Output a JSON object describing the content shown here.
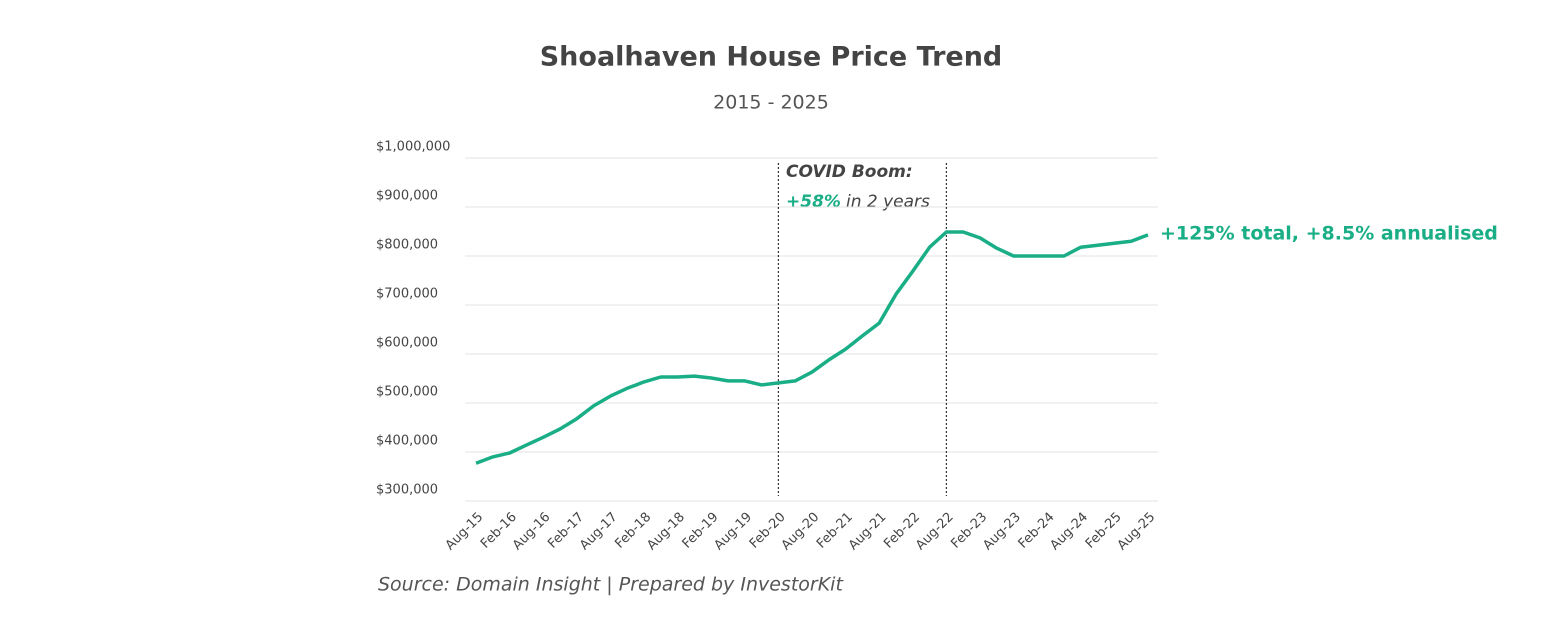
{
  "chart_data": {
    "type": "line",
    "title": "Shoalhaven House Price Trend",
    "subtitle": "2015 - 2025",
    "annotations": [
      "COVID Boom:",
      "+58%",
      "in 2 years",
      "+125% total, +8.5% annualised"
    ],
    "source": "Source: Domain Insight | Prepared by InvestorKit",
    "categories": [
      "Aug-15",
      null,
      "Feb-16",
      null,
      "Aug-16",
      null,
      "Feb-17",
      null,
      "Aug-17",
      null,
      "Feb-18",
      null,
      "Aug-18",
      null,
      "Feb-19",
      null,
      "Aug-19",
      null,
      "Feb-20",
      null,
      "Aug-20",
      null,
      "Feb-21",
      null,
      "Aug-21",
      null,
      "Feb-22",
      null,
      "Aug-22",
      null,
      "Feb-23",
      null,
      "Aug-23",
      null,
      "Feb-24",
      null,
      "Aug-24",
      null,
      "Feb-25",
      null,
      "Aug-25"
    ],
    "series": [
      {
        "color": "#19ae86",
        "values": [
          377000,
          390000,
          398000,
          414000,
          430000,
          447000,
          468000,
          494000,
          514000,
          530000,
          543000,
          553000,
          553000,
          555000,
          551000,
          545000,
          545000,
          537000,
          541000,
          545000,
          563000,
          588000,
          610000,
          637000,
          663000,
          722000,
          769000,
          818000,
          849000,
          849000,
          837000,
          816000,
          800000,
          800000,
          800000,
          800000,
          818000,
          822000,
          826000,
          830000,
          843000
        ]
      }
    ],
    "markers": [
      "Feb-20",
      "Aug-22"
    ],
    "ylim": [
      300000,
      1000000
    ],
    "yticks": [
      {
        "value": 300000,
        "label": "$300,000"
      },
      {
        "value": 400000,
        "label": "$400,000"
      },
      {
        "value": 500000,
        "label": "$500,000"
      },
      {
        "value": 600000,
        "label": "$600,000"
      },
      {
        "value": 700000,
        "label": "$700,000"
      },
      {
        "value": 800000,
        "label": "$800,000"
      },
      {
        "value": 900000,
        "label": "$900,000"
      },
      {
        "value": 1000000,
        "label": "$1,000,000"
      }
    ],
    "grid": true
  }
}
